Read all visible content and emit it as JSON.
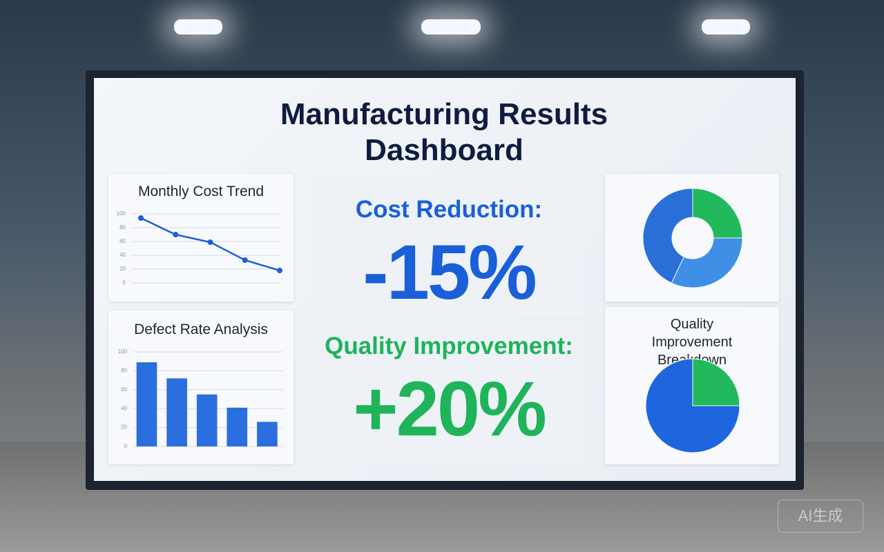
{
  "title": "Manufacturing Results Dashboard",
  "kpis": [
    {
      "label": "Cost Reduction:",
      "value": "-15%"
    },
    {
      "label": "Quality Improvement:",
      "value": "+20%"
    }
  ],
  "watermark": "AI生成",
  "chart_data": [
    {
      "type": "line",
      "title": "Monthly Cost Trend",
      "categories": [
        null,
        null,
        null,
        null,
        null
      ],
      "values": [
        94,
        70,
        59,
        33,
        18
      ],
      "color": "#1f5fd6",
      "ylim": [
        0,
        100
      ],
      "yticks": [
        0,
        20,
        40,
        60,
        80,
        100
      ],
      "grid": true
    },
    {
      "type": "bar",
      "title": "Defect Rate Analysis",
      "categories": [
        null,
        null,
        null,
        null,
        null
      ],
      "values": [
        89,
        72,
        55,
        41,
        26
      ],
      "color": "#2a6ee0",
      "ylim": [
        0,
        100
      ],
      "yticks": [
        0,
        20,
        40,
        60,
        80,
        100
      ],
      "grid": true
    },
    {
      "type": "donut",
      "values": [
        25,
        32,
        43
      ],
      "colors": [
        "#22b85c",
        "#3f8fe6",
        "#2a6fd8"
      ]
    },
    {
      "type": "pie",
      "title": "Quality Improvement Breakdown",
      "values": [
        25,
        75
      ],
      "colors": [
        "#22b85c",
        "#1f66de"
      ]
    }
  ]
}
